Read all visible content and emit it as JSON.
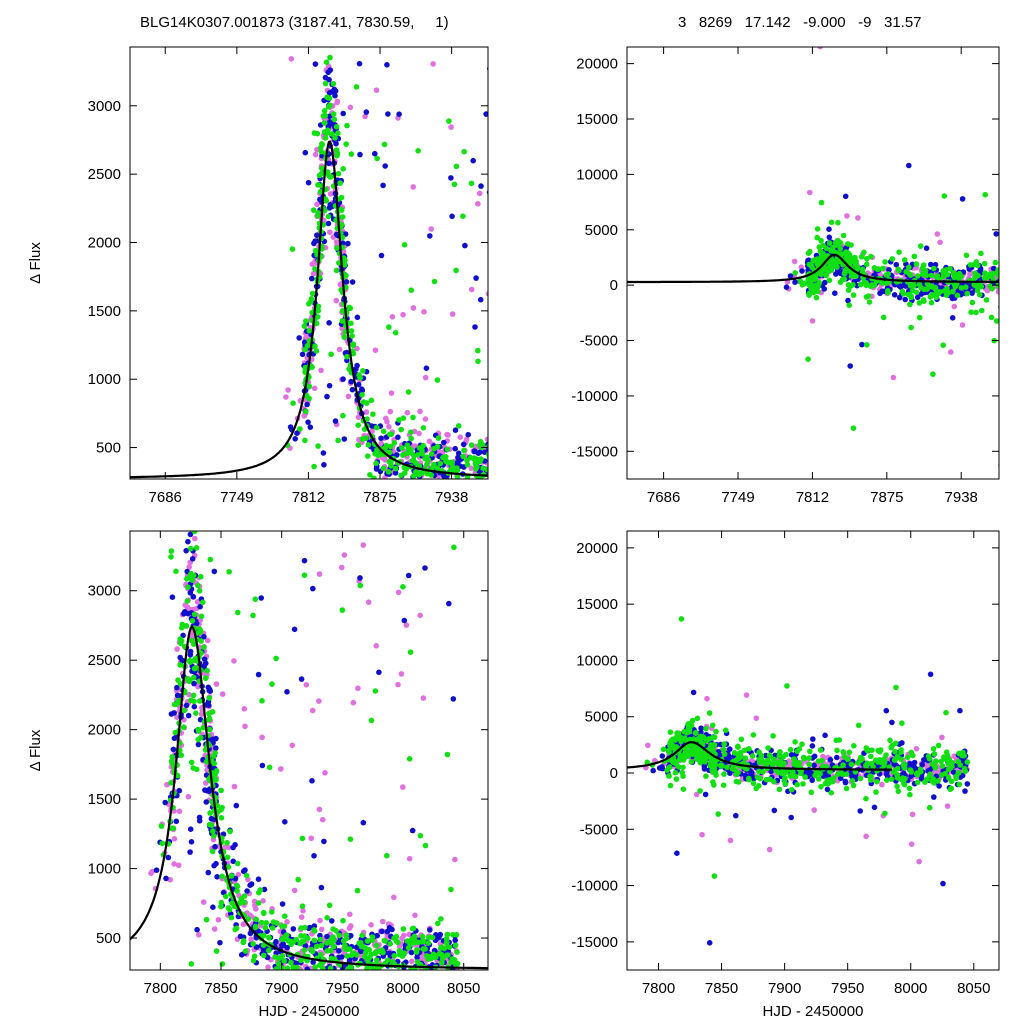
{
  "header": {
    "left": "BLG14K0307.001873 (3187.41, 7830.59,     1)",
    "right": "3   8269   17.142   -9.000   -9   31.57"
  },
  "colors": {
    "magenta": "#e070e0",
    "blue": "#1010cc",
    "green": "#10e010",
    "model": "#000000"
  },
  "chart_data": [
    {
      "id": "top-left",
      "type": "scatter",
      "xlabel": "",
      "ylabel": "Δ Flux",
      "xlim": [
        7655,
        7970
      ],
      "ylim": [
        270,
        3430
      ],
      "xticks": [
        7686,
        7749,
        7812,
        7875,
        7938
      ],
      "yticks": [
        500,
        1000,
        1500,
        2000,
        2500,
        3000
      ],
      "model": {
        "t0": 7830.6,
        "peak": 2740,
        "base": 270,
        "rise": 13,
        "fall": 14
      },
      "series": [
        {
          "color": "magenta",
          "n": 420
        },
        {
          "color": "blue",
          "n": 420
        },
        {
          "color": "green",
          "n": 480
        }
      ]
    },
    {
      "id": "top-right",
      "type": "scatter",
      "xlabel": "",
      "ylabel": "",
      "xlim": [
        7655,
        7970
      ],
      "ylim": [
        -17500,
        21500
      ],
      "xticks": [
        7686,
        7749,
        7812,
        7875,
        7938
      ],
      "yticks": [
        -15000,
        -10000,
        -5000,
        0,
        5000,
        10000,
        15000,
        20000
      ],
      "model": {
        "t0": 7830.6,
        "peak": 2740,
        "base": 270,
        "rise": 13,
        "fall": 14
      },
      "series": [
        {
          "color": "magenta",
          "n": 420
        },
        {
          "color": "blue",
          "n": 420
        },
        {
          "color": "green",
          "n": 480
        }
      ]
    },
    {
      "id": "bottom-left",
      "type": "scatter",
      "xlabel": "HJD - 2450000",
      "ylabel": "Δ Flux",
      "xlim": [
        7775,
        8070
      ],
      "ylim": [
        270,
        3430
      ],
      "xticks": [
        7800,
        7850,
        7900,
        7950,
        8000,
        8050
      ],
      "yticks": [
        500,
        1000,
        1500,
        2000,
        2500,
        3000
      ],
      "model": {
        "t0": 7826,
        "peak": 2740,
        "base": 270,
        "rise": 16,
        "fall": 18
      },
      "series": [
        {
          "color": "magenta",
          "n": 420
        },
        {
          "color": "blue",
          "n": 420
        },
        {
          "color": "green",
          "n": 480
        }
      ]
    },
    {
      "id": "bottom-right",
      "type": "scatter",
      "xlabel": "HJD - 2450000",
      "ylabel": "",
      "xlim": [
        7775,
        8070
      ],
      "ylim": [
        -17500,
        21500
      ],
      "xticks": [
        7800,
        7850,
        7900,
        7950,
        8000,
        8050
      ],
      "yticks": [
        -15000,
        -10000,
        -5000,
        0,
        5000,
        10000,
        15000,
        20000
      ],
      "model": {
        "t0": 7826,
        "peak": 2740,
        "base": 270,
        "rise": 16,
        "fall": 18
      },
      "series": [
        {
          "color": "magenta",
          "n": 420
        },
        {
          "color": "blue",
          "n": 420
        },
        {
          "color": "green",
          "n": 480
        }
      ]
    }
  ]
}
